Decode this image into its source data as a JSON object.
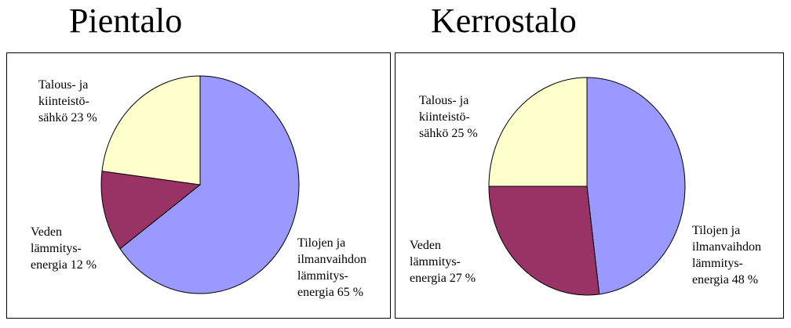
{
  "chart_data": [
    {
      "type": "pie",
      "title": "Pientalo",
      "slices": [
        {
          "label": [
            "Tilojen ja",
            "ilmanvaihdon",
            "lämmitys-",
            "energia 65 %"
          ],
          "value": 65,
          "color": "#9999ff"
        },
        {
          "label": [
            "Veden",
            "lämmitys-",
            "energia 12 %"
          ],
          "value": 12,
          "color": "#993366"
        },
        {
          "label": [
            "Talous- ja",
            "kiinteistö-",
            "sähkö 23 %"
          ],
          "value": 23,
          "color": "#ffffcc"
        }
      ]
    },
    {
      "type": "pie",
      "title": "Kerrostalo",
      "slices": [
        {
          "label": [
            "Tilojen ja",
            "ilmanvaihdon",
            "lämmitys-",
            "energia 48 %"
          ],
          "value": 48,
          "color": "#9999ff"
        },
        {
          "label": [
            "Veden",
            "lämmitys-",
            "energia 27 %"
          ],
          "value": 27,
          "color": "#993366"
        },
        {
          "label": [
            "Talous- ja",
            "kiinteistö-",
            "sähkö 25 %"
          ],
          "value": 25,
          "color": "#ffffcc"
        }
      ]
    }
  ]
}
